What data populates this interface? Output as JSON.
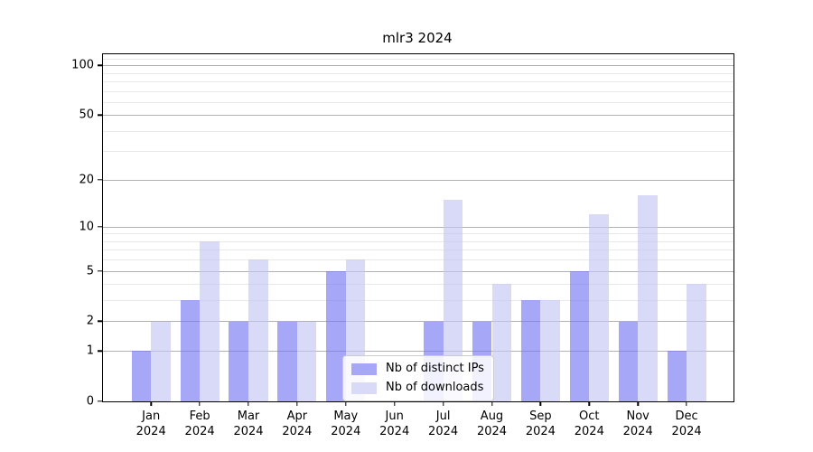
{
  "title": "mlr3 2024",
  "chart_data": {
    "type": "bar",
    "title": "mlr3 2024",
    "x_year": "2024",
    "categories": [
      "Jan",
      "Feb",
      "Mar",
      "Apr",
      "May",
      "Jun",
      "Jul",
      "Aug",
      "Sep",
      "Oct",
      "Nov",
      "Dec"
    ],
    "series": [
      {
        "name": "Nb of distinct IPs",
        "fill": "rgba(118,121,243,0.65)",
        "legend_color": "#a6a8f7",
        "values": [
          1,
          3,
          2,
          2,
          5,
          0,
          2,
          2,
          3,
          5,
          2,
          1
        ]
      },
      {
        "name": "Nb of downloads",
        "fill": "rgba(197,198,244,0.65)",
        "legend_color": "#d9daf8",
        "values": [
          2,
          8,
          6,
          2,
          6,
          0,
          15,
          4,
          3,
          12,
          16,
          4
        ]
      }
    ],
    "y_axis": {
      "scale": "log1p",
      "major_ticks": [
        0,
        1,
        2,
        5,
        10,
        20,
        50,
        100
      ],
      "minor_ticks": [
        3,
        4,
        6,
        7,
        8,
        9,
        30,
        40,
        60,
        70,
        80,
        90,
        110
      ],
      "top_value": 116.5
    },
    "grid": {
      "major_color": "#b2b2b2",
      "minor_color": "#e8e8e8"
    },
    "legend_position": "inside lower center",
    "axis_color": "#000000",
    "background_color": "#ffffff"
  }
}
